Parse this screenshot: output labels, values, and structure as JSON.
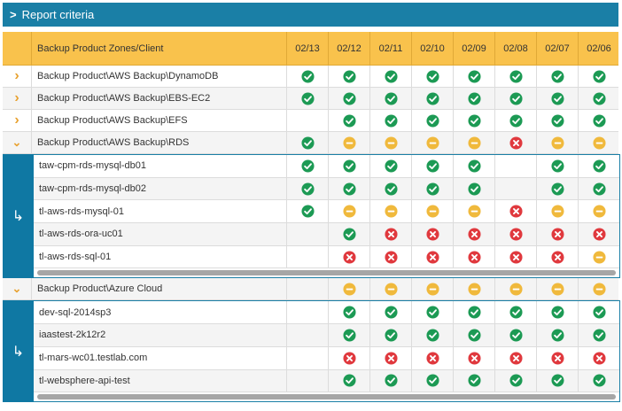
{
  "banner": {
    "label": "Report criteria"
  },
  "columns": {
    "name_header": "Backup Product Zones/Client",
    "dates": [
      "02/13",
      "02/12",
      "02/11",
      "02/10",
      "02/09",
      "02/08",
      "02/07",
      "02/06"
    ]
  },
  "colors": {
    "ok": "#1c9a54",
    "warn": "#f0b93c",
    "fail": "#e0393e",
    "header": "#f9c24c",
    "accent": "#1a7fa6"
  },
  "groups": [
    {
      "label": "Backup Product\\AWS Backup\\DynamoDB",
      "expanded": false,
      "status": [
        "ok",
        "ok",
        "ok",
        "ok",
        "ok",
        "ok",
        "ok",
        "ok"
      ]
    },
    {
      "label": "Backup Product\\AWS Backup\\EBS-EC2",
      "expanded": false,
      "status": [
        "ok",
        "ok",
        "ok",
        "ok",
        "ok",
        "ok",
        "ok",
        "ok"
      ]
    },
    {
      "label": "Backup Product\\AWS Backup\\EFS",
      "expanded": false,
      "status": [
        "",
        "ok",
        "ok",
        "ok",
        "ok",
        "ok",
        "ok",
        "ok"
      ]
    },
    {
      "label": "Backup Product\\AWS Backup\\RDS",
      "expanded": true,
      "status": [
        "ok",
        "warn",
        "warn",
        "warn",
        "warn",
        "fail",
        "warn",
        "warn"
      ],
      "children": [
        {
          "label": "taw-cpm-rds-mysql-db01",
          "status": [
            "ok",
            "ok",
            "ok",
            "ok",
            "ok",
            "",
            "ok",
            "ok"
          ]
        },
        {
          "label": "taw-cpm-rds-mysql-db02",
          "status": [
            "ok",
            "ok",
            "ok",
            "ok",
            "ok",
            "",
            "ok",
            "ok"
          ]
        },
        {
          "label": "tl-aws-rds-mysql-01",
          "status": [
            "ok",
            "warn",
            "warn",
            "warn",
            "warn",
            "fail",
            "warn",
            "warn"
          ]
        },
        {
          "label": "tl-aws-rds-ora-uc01",
          "status": [
            "",
            "ok",
            "fail",
            "fail",
            "fail",
            "fail",
            "fail",
            "fail"
          ]
        },
        {
          "label": "tl-aws-rds-sql-01",
          "status": [
            "",
            "fail",
            "fail",
            "fail",
            "fail",
            "fail",
            "fail",
            "warn"
          ]
        }
      ]
    },
    {
      "label": "Backup Product\\Azure Cloud",
      "expanded": true,
      "status": [
        "",
        "warn",
        "warn",
        "warn",
        "warn",
        "warn",
        "warn",
        "warn"
      ],
      "children": [
        {
          "label": "dev-sql-2014sp3",
          "status": [
            "",
            "ok",
            "ok",
            "ok",
            "ok",
            "ok",
            "ok",
            "ok"
          ]
        },
        {
          "label": "iaastest-2k12r2",
          "status": [
            "",
            "ok",
            "ok",
            "ok",
            "ok",
            "ok",
            "ok",
            "ok"
          ]
        },
        {
          "label": "tl-mars-wc01.testlab.com",
          "status": [
            "",
            "fail",
            "fail",
            "fail",
            "fail",
            "fail",
            "fail",
            "fail"
          ]
        },
        {
          "label": "tl-websphere-api-test",
          "status": [
            "",
            "ok",
            "ok",
            "ok",
            "ok",
            "ok",
            "ok",
            "ok"
          ]
        }
      ]
    }
  ]
}
